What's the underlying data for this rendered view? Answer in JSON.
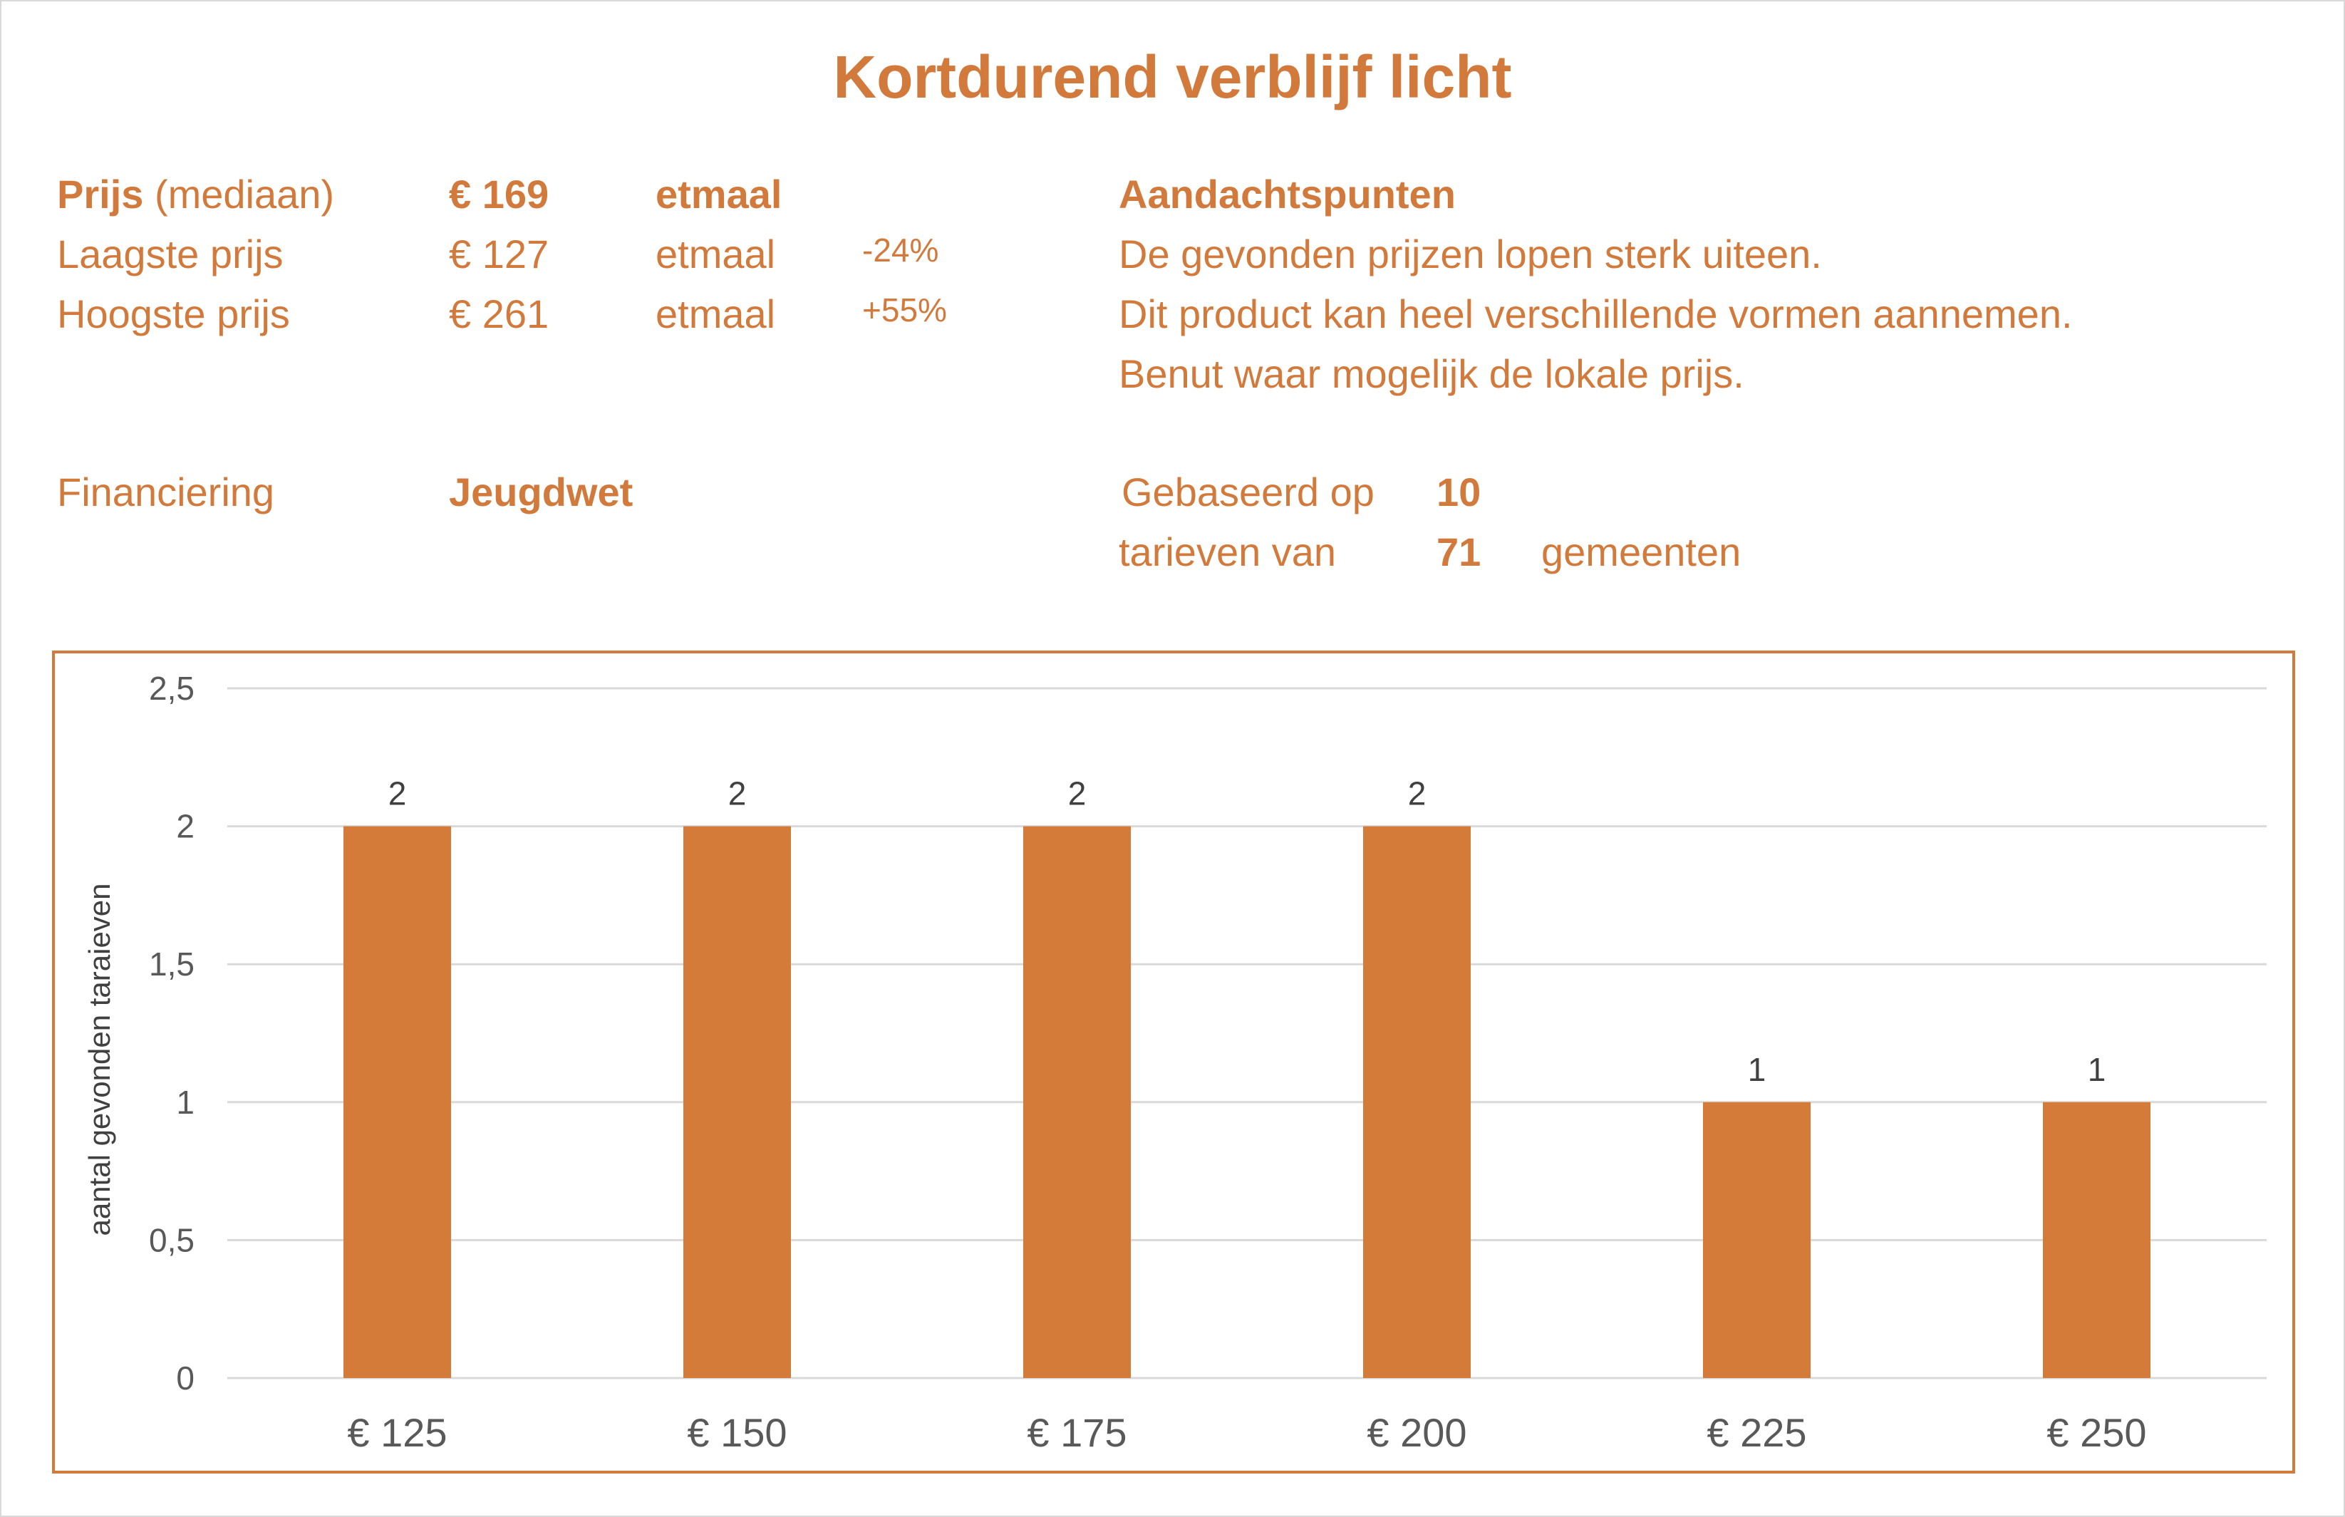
{
  "title": "Kortdurend verblijf licht",
  "prices": {
    "median": {
      "label_bold": "Prijs",
      "label_rest": "(mediaan)",
      "value": "€ 169",
      "unit": "etmaal"
    },
    "lowest": {
      "label": "Laagste prijs",
      "value": "€ 127",
      "unit": "etmaal",
      "diff": "-24%"
    },
    "highest": {
      "label": "Hoogste prijs",
      "value": "€ 261",
      "unit": "etmaal",
      "diff": "+55%"
    }
  },
  "financing": {
    "label": "Financiering",
    "value": "Jeugdwet"
  },
  "notes": {
    "heading": "Aandachtspunten",
    "lines": [
      "De gevonden prijzen lopen sterk uiteen.",
      "Dit product kan heel verschillende vormen aannemen.",
      "Benut waar mogelijk de lokale prijs."
    ]
  },
  "basis": {
    "label1": "Gebaseerd op",
    "count1": "10",
    "label2": "tarieven van",
    "count2": "71",
    "label3": "gemeenten"
  },
  "colors": {
    "accent": "#d27a3c",
    "bar": "#d47b3a",
    "grid": "#d9d9d9"
  },
  "chart_data": {
    "type": "bar",
    "categories": [
      "€ 125",
      "€ 150",
      "€ 175",
      "€ 200",
      "€ 225",
      "€ 250"
    ],
    "values": [
      2,
      2,
      2,
      2,
      1,
      1
    ],
    "data_labels": [
      "2",
      "2",
      "2",
      "2",
      "1",
      "1"
    ],
    "xlabel": "",
    "ylabel": "aantal gevonden taraieven",
    "ylim": [
      0,
      2.5
    ],
    "yticks": [
      0,
      0.5,
      1,
      1.5,
      2,
      2.5
    ],
    "ytick_labels": [
      "0",
      "0,5",
      "1",
      "1,5",
      "2",
      "2,5"
    ],
    "grid": true,
    "legend": "none"
  }
}
